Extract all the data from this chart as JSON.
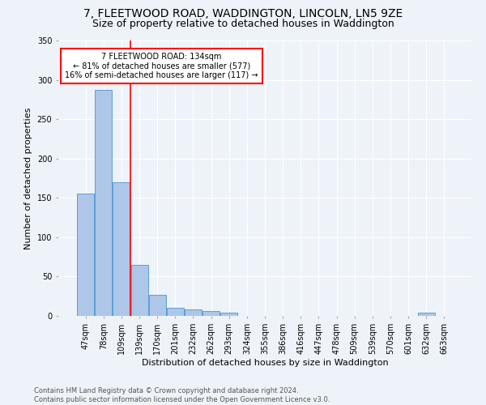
{
  "title": "7, FLEETWOOD ROAD, WADDINGTON, LINCOLN, LN5 9ZE",
  "subtitle": "Size of property relative to detached houses in Waddington",
  "xlabel": "Distribution of detached houses by size in Waddington",
  "ylabel": "Number of detached properties",
  "footer_line1": "Contains HM Land Registry data © Crown copyright and database right 2024.",
  "footer_line2": "Contains public sector information licensed under the Open Government Licence v3.0.",
  "bin_labels": [
    "47sqm",
    "78sqm",
    "109sqm",
    "139sqm",
    "170sqm",
    "201sqm",
    "232sqm",
    "262sqm",
    "293sqm",
    "324sqm",
    "355sqm",
    "386sqm",
    "416sqm",
    "447sqm",
    "478sqm",
    "509sqm",
    "539sqm",
    "570sqm",
    "601sqm",
    "632sqm",
    "663sqm"
  ],
  "bar_heights": [
    155,
    287,
    170,
    65,
    27,
    10,
    8,
    6,
    4,
    0,
    0,
    0,
    0,
    0,
    0,
    0,
    0,
    0,
    0,
    4,
    0
  ],
  "bar_color": "#aec6e8",
  "bar_edge_color": "#5a9fd4",
  "red_line_x": 2.5,
  "annotation_text": "7 FLEETWOOD ROAD: 134sqm\n← 81% of detached houses are smaller (577)\n16% of semi-detached houses are larger (117) →",
  "annotation_box_color": "white",
  "annotation_box_edge_color": "red",
  "red_line_color": "red",
  "ylim": [
    0,
    350
  ],
  "yticks": [
    0,
    50,
    100,
    150,
    200,
    250,
    300,
    350
  ],
  "bg_color": "#eef3f9",
  "plot_bg_color": "#eef3f9",
  "grid_color": "white",
  "title_fontsize": 10,
  "subtitle_fontsize": 9,
  "ylabel_fontsize": 8,
  "xlabel_fontsize": 8,
  "tick_fontsize": 7,
  "footer_fontsize": 6,
  "annot_fontsize": 7
}
